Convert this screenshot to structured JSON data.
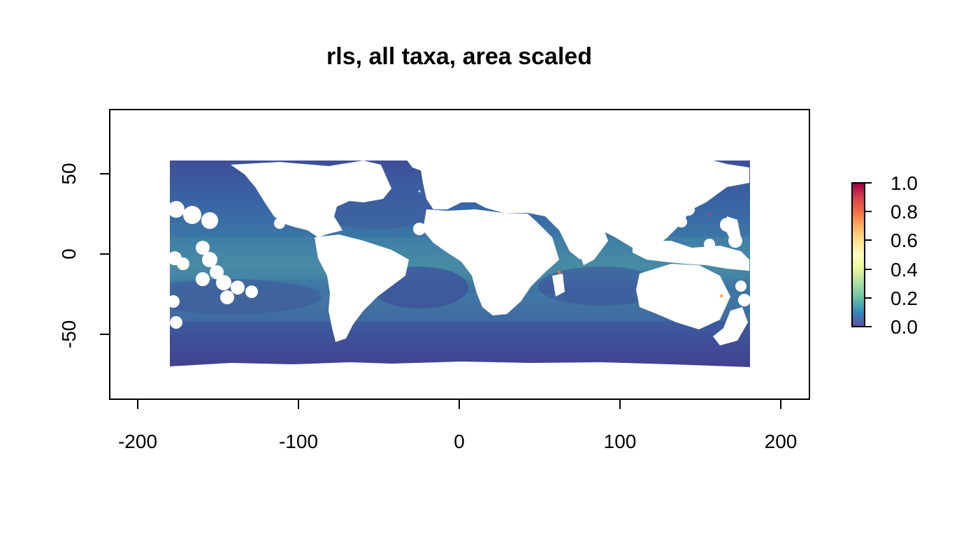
{
  "map": {
    "title": "rls, all taxa, area scaled",
    "x_axis": {
      "range": [
        -217,
        217
      ],
      "ticks": [
        -200,
        -100,
        0,
        100,
        200
      ],
      "tick_labels": [
        "-200",
        "-100",
        "0",
        "100",
        "200"
      ]
    },
    "y_axis": {
      "range": [
        -90,
        90
      ],
      "ticks": [
        50,
        0,
        -50
      ],
      "tick_labels": [
        "50",
        "0",
        "-50"
      ]
    },
    "raster_extent": {
      "lon": [
        -180,
        180
      ],
      "lat": [
        -72,
        59
      ]
    },
    "background_color": "#ffffff",
    "colors": {
      "ocean_low": "#3f4f9a",
      "ocean_mid": "#3b78a6",
      "ocean_high": "#5fa8a0",
      "land": "#ffffff"
    }
  },
  "legend": {
    "tick_labels": [
      "1.0",
      "0.8",
      "0.6",
      "0.4",
      "0.2",
      "0.0"
    ],
    "range": [
      0,
      1
    ],
    "palette": [
      "#5E4FA2",
      "#3288BD",
      "#66C2A5",
      "#ABDDA4",
      "#E6F598",
      "#FFFFBF",
      "#FEE08B",
      "#FDAE61",
      "#F46D43",
      "#D53E4F",
      "#9E0142"
    ]
  }
}
